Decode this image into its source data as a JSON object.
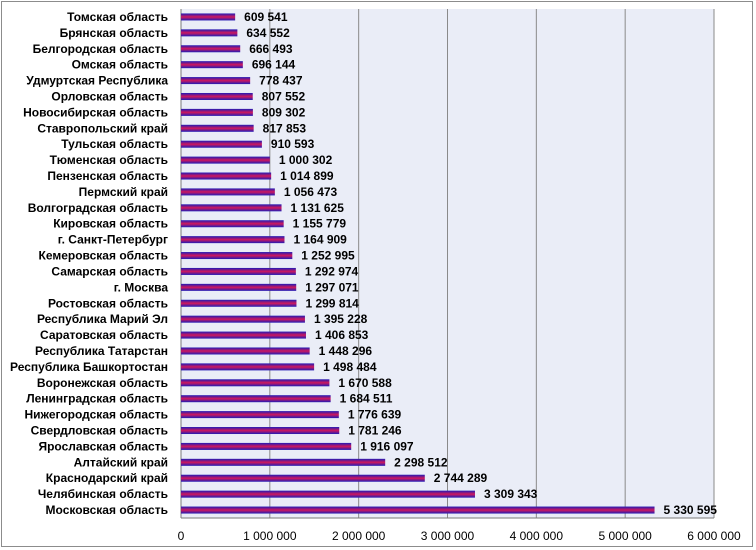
{
  "chart_data": {
    "type": "bar",
    "orientation": "horizontal",
    "title": "",
    "xlabel": "",
    "ylabel": "",
    "categories": [
      "Томская область",
      "Брянская область",
      "Белгородская область",
      "Омская область",
      "Удмуртская Республика",
      "Орловская область",
      "Новосибирская область",
      "Ставропольский край",
      "Тульская область",
      "Тюменская область",
      "Пензенская область",
      "Пермский край",
      "Волгоградская область",
      "Кировская область",
      "г. Санкт-Петербург",
      "Кемеровская область",
      "Самарская область",
      "г. Москва",
      "Ростовская область",
      "Республика  Марий Эл",
      "Саратовская область",
      "Республика  Татарстан",
      "Республика  Башкортостан",
      "Воронежская область",
      "Ленинградская область",
      "Нижегородская область",
      "Свердловская область",
      "Ярославская область",
      "Алтайский край",
      "Краснодарский край",
      "Челябинская область",
      "Московская область"
    ],
    "values": [
      609541,
      634552,
      666493,
      696144,
      778437,
      807552,
      809302,
      817853,
      910593,
      1000302,
      1014899,
      1056473,
      1131625,
      1155779,
      1164909,
      1252995,
      1292974,
      1297071,
      1299814,
      1395228,
      1406853,
      1448296,
      1498484,
      1670588,
      1684511,
      1776639,
      1781246,
      1916097,
      2298512,
      2744289,
      3309343,
      5330595
    ],
    "value_labels": [
      "609 541",
      "634 552",
      "666 493",
      "696 144",
      "778 437",
      "807 552",
      "809 302",
      "817 853",
      "910 593",
      "1 000 302",
      "1 014 899",
      "1 056 473",
      "1 131 625",
      "1 155 779",
      "1 164 909",
      "1 252 995",
      "1 292 974",
      "1 297 071",
      "1 299 814",
      "1 395 228",
      "1 406 853",
      "1 448 296",
      "1 498 484",
      "1 670 588",
      "1 684 511",
      "1 776 639",
      "1 781 246",
      "1 916 097",
      "2 298 512",
      "2 744 289",
      "3 309 343",
      "5 330 595"
    ],
    "xlim": [
      0,
      6000000
    ],
    "ticks": [
      0,
      1000000,
      2000000,
      3000000,
      4000000,
      5000000,
      6000000
    ],
    "tick_labels": [
      "0",
      "1 000 000",
      "2 000 000",
      "3 000 000",
      "4 000 000",
      "5 000 000",
      "6 000 000"
    ],
    "grid": "vertical",
    "legend": "none",
    "colors": {
      "plot_background": "#eaedf7",
      "bar_gradient": [
        "#1f1ab8",
        "#d0185c",
        "#1f1ab8"
      ],
      "grid": "#8a8a8a"
    }
  }
}
